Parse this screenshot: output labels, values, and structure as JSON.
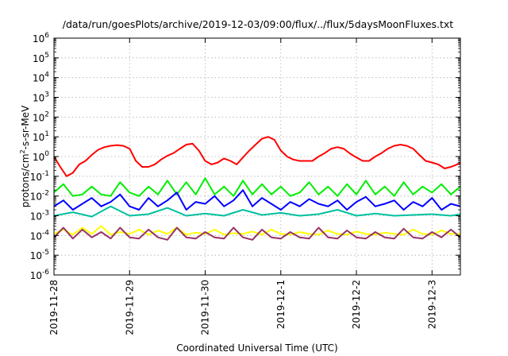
{
  "chart_data": {
    "type": "line",
    "title": "/data/run/goesPlots/archive/2019-12-03/09:00/flux/../flux/5daysMoonFluxes.txt",
    "xlabel": "Coordinated Universal Time (UTC)",
    "ylabel": {
      "prefix": "protons/cm",
      "sup": "2",
      "suffix": "-s-sr-MeV"
    },
    "yscale": "log",
    "ylim": [
      -6,
      6
    ],
    "y_ticks": [
      {
        "exp": -6,
        "base": "10",
        "sup": "-6"
      },
      {
        "exp": -5,
        "base": "10",
        "sup": "-5"
      },
      {
        "exp": -4,
        "base": "10",
        "sup": "-4"
      },
      {
        "exp": -3,
        "base": "10",
        "sup": "-3"
      },
      {
        "exp": -2,
        "base": "10",
        "sup": "-2"
      },
      {
        "exp": -1,
        "base": "10",
        "sup": "-1"
      },
      {
        "exp": 0,
        "base": "10",
        "sup": "0"
      },
      {
        "exp": 1,
        "base": "10",
        "sup": "1"
      },
      {
        "exp": 2,
        "base": "10",
        "sup": "2"
      },
      {
        "exp": 3,
        "base": "10",
        "sup": "3"
      },
      {
        "exp": 4,
        "base": "10",
        "sup": "4"
      },
      {
        "exp": 5,
        "base": "10",
        "sup": "5"
      },
      {
        "exp": 6,
        "base": "10",
        "sup": "6"
      }
    ],
    "xlim": [
      "2019-11-28T00:00",
      "2019-12-03T09:00"
    ],
    "x_ticks": [
      "2019-11-28",
      "2019-11-29",
      "2019-11-30",
      "2019-12-1",
      "2019-12-2",
      "2019-12-3"
    ],
    "x_tick_dates": [
      "2019-11-28",
      "2019-11-29",
      "2019-11-30",
      "2019-12-01",
      "2019-12-02",
      "2019-12-03"
    ],
    "grid": true,
    "series": [
      {
        "color": "#ff0000",
        "x": [
          "2019-11-28T00:00",
          "2019-11-28T02:00",
          "2019-11-28T04:00",
          "2019-11-28T06:00",
          "2019-11-28T08:00",
          "2019-11-28T10:00",
          "2019-11-28T12:00",
          "2019-11-28T14:00",
          "2019-11-28T16:00",
          "2019-11-28T18:00",
          "2019-11-28T20:00",
          "2019-11-28T22:00",
          "2019-11-29T00:00",
          "2019-11-29T02:00",
          "2019-11-29T04:00",
          "2019-11-29T06:00",
          "2019-11-29T08:00",
          "2019-11-29T10:00",
          "2019-11-29T12:00",
          "2019-11-29T14:00",
          "2019-11-29T16:00",
          "2019-11-29T18:00",
          "2019-11-29T20:00",
          "2019-11-29T22:00",
          "2019-11-30T00:00",
          "2019-11-30T02:00",
          "2019-11-30T04:00",
          "2019-11-30T06:00",
          "2019-11-30T08:00",
          "2019-11-30T10:00",
          "2019-11-30T12:00",
          "2019-11-30T14:00",
          "2019-11-30T16:00",
          "2019-11-30T18:00",
          "2019-11-30T20:00",
          "2019-11-30T22:00",
          "2019-12-01T00:00",
          "2019-12-01T02:00",
          "2019-12-01T04:00",
          "2019-12-01T06:00",
          "2019-12-01T08:00",
          "2019-12-01T10:00",
          "2019-12-01T12:00",
          "2019-12-01T14:00",
          "2019-12-01T16:00",
          "2019-12-01T18:00",
          "2019-12-01T20:00",
          "2019-12-01T22:00",
          "2019-12-02T00:00",
          "2019-12-02T02:00",
          "2019-12-02T04:00",
          "2019-12-02T06:00",
          "2019-12-02T08:00",
          "2019-12-02T10:00",
          "2019-12-02T12:00",
          "2019-12-02T14:00",
          "2019-12-02T16:00",
          "2019-12-02T18:00",
          "2019-12-02T20:00",
          "2019-12-02T22:00",
          "2019-12-03T00:00",
          "2019-12-03T02:00",
          "2019-12-03T04:00",
          "2019-12-03T06:00",
          "2019-12-03T08:00",
          "2019-12-03T09:00"
        ],
        "y": [
          1.0,
          0.3,
          0.1,
          0.15,
          0.4,
          0.6,
          1.2,
          2.2,
          3.0,
          3.5,
          3.8,
          3.5,
          2.5,
          0.6,
          0.3,
          0.3,
          0.4,
          0.7,
          1.1,
          1.5,
          2.5,
          4.0,
          4.5,
          2.0,
          0.6,
          0.4,
          0.5,
          0.8,
          0.6,
          0.4,
          0.9,
          2.0,
          4.0,
          8.0,
          10.0,
          7.0,
          2.0,
          1.0,
          0.7,
          0.6,
          0.6,
          0.6,
          1.0,
          1.5,
          2.5,
          3.0,
          2.5,
          1.4,
          0.9,
          0.6,
          0.6,
          1.0,
          1.5,
          2.5,
          3.5,
          4.0,
          3.5,
          2.5,
          1.2,
          0.6,
          0.5,
          0.4,
          0.25,
          0.3,
          0.4,
          0.5
        ]
      },
      {
        "color": "#00ee00",
        "x": [
          "2019-11-28T00:00",
          "2019-11-28T03:00",
          "2019-11-28T06:00",
          "2019-11-28T09:00",
          "2019-11-28T12:00",
          "2019-11-28T15:00",
          "2019-11-28T18:00",
          "2019-11-28T21:00",
          "2019-11-29T00:00",
          "2019-11-29T03:00",
          "2019-11-29T06:00",
          "2019-11-29T09:00",
          "2019-11-29T12:00",
          "2019-11-29T15:00",
          "2019-11-29T18:00",
          "2019-11-29T21:00",
          "2019-11-30T00:00",
          "2019-11-30T03:00",
          "2019-11-30T06:00",
          "2019-11-30T09:00",
          "2019-11-30T12:00",
          "2019-11-30T15:00",
          "2019-11-30T18:00",
          "2019-11-30T21:00",
          "2019-12-01T00:00",
          "2019-12-01T03:00",
          "2019-12-01T06:00",
          "2019-12-01T09:00",
          "2019-12-01T12:00",
          "2019-12-01T15:00",
          "2019-12-01T18:00",
          "2019-12-01T21:00",
          "2019-12-02T00:00",
          "2019-12-02T03:00",
          "2019-12-02T06:00",
          "2019-12-02T09:00",
          "2019-12-02T12:00",
          "2019-12-02T15:00",
          "2019-12-02T18:00",
          "2019-12-02T21:00",
          "2019-12-03T00:00",
          "2019-12-03T03:00",
          "2019-12-03T06:00",
          "2019-12-03T09:00"
        ],
        "y": [
          0.015,
          0.04,
          0.01,
          0.012,
          0.03,
          0.012,
          0.01,
          0.05,
          0.015,
          0.01,
          0.03,
          0.012,
          0.06,
          0.012,
          0.05,
          0.012,
          0.08,
          0.012,
          0.03,
          0.01,
          0.06,
          0.012,
          0.04,
          0.012,
          0.03,
          0.01,
          0.015,
          0.05,
          0.012,
          0.03,
          0.01,
          0.04,
          0.012,
          0.06,
          0.012,
          0.03,
          0.01,
          0.05,
          0.012,
          0.03,
          0.015,
          0.04,
          0.012,
          0.03
        ]
      },
      {
        "color": "#0000ff",
        "x": [
          "2019-11-28T00:00",
          "2019-11-28T03:00",
          "2019-11-28T06:00",
          "2019-11-28T09:00",
          "2019-11-28T12:00",
          "2019-11-28T15:00",
          "2019-11-28T18:00",
          "2019-11-28T21:00",
          "2019-11-29T00:00",
          "2019-11-29T03:00",
          "2019-11-29T06:00",
          "2019-11-29T09:00",
          "2019-11-29T12:00",
          "2019-11-29T15:00",
          "2019-11-29T18:00",
          "2019-11-29T21:00",
          "2019-11-30T00:00",
          "2019-11-30T03:00",
          "2019-11-30T06:00",
          "2019-11-30T09:00",
          "2019-11-30T12:00",
          "2019-11-30T15:00",
          "2019-11-30T18:00",
          "2019-11-30T21:00",
          "2019-12-01T00:00",
          "2019-12-01T03:00",
          "2019-12-01T06:00",
          "2019-12-01T09:00",
          "2019-12-01T12:00",
          "2019-12-01T15:00",
          "2019-12-01T18:00",
          "2019-12-01T21:00",
          "2019-12-02T00:00",
          "2019-12-02T03:00",
          "2019-12-02T06:00",
          "2019-12-02T09:00",
          "2019-12-02T12:00",
          "2019-12-02T15:00",
          "2019-12-02T18:00",
          "2019-12-02T21:00",
          "2019-12-03T00:00",
          "2019-12-03T03:00",
          "2019-12-03T06:00",
          "2019-12-03T09:00"
        ],
        "y": [
          0.003,
          0.006,
          0.002,
          0.004,
          0.008,
          0.003,
          0.005,
          0.012,
          0.003,
          0.002,
          0.008,
          0.003,
          0.006,
          0.015,
          0.002,
          0.005,
          0.004,
          0.01,
          0.003,
          0.006,
          0.02,
          0.003,
          0.008,
          0.004,
          0.002,
          0.005,
          0.003,
          0.007,
          0.004,
          0.003,
          0.006,
          0.002,
          0.005,
          0.009,
          0.003,
          0.004,
          0.006,
          0.002,
          0.005,
          0.003,
          0.008,
          0.002,
          0.004,
          0.003
        ]
      },
      {
        "color": "#00c0a0",
        "x": [
          "2019-11-28T00:00",
          "2019-11-28T06:00",
          "2019-11-28T12:00",
          "2019-11-28T18:00",
          "2019-11-29T00:00",
          "2019-11-29T06:00",
          "2019-11-29T12:00",
          "2019-11-29T18:00",
          "2019-11-30T00:00",
          "2019-11-30T06:00",
          "2019-11-30T12:00",
          "2019-11-30T18:00",
          "2019-12-01T00:00",
          "2019-12-01T06:00",
          "2019-12-01T12:00",
          "2019-12-01T18:00",
          "2019-12-02T00:00",
          "2019-12-02T06:00",
          "2019-12-02T12:00",
          "2019-12-02T18:00",
          "2019-12-03T00:00",
          "2019-12-03T06:00",
          "2019-12-03T09:00"
        ],
        "y": [
          0.001,
          0.0015,
          0.0009,
          0.003,
          0.001,
          0.0012,
          0.0025,
          0.001,
          0.0013,
          0.001,
          0.002,
          0.0011,
          0.0014,
          0.001,
          0.0012,
          0.002,
          0.001,
          0.0013,
          0.001,
          0.0011,
          0.0012,
          0.001,
          0.0012
        ]
      },
      {
        "color": "#ffff00",
        "x": [
          "2019-11-28T00:00",
          "2019-11-28T03:00",
          "2019-11-28T06:00",
          "2019-11-28T09:00",
          "2019-11-28T12:00",
          "2019-11-28T15:00",
          "2019-11-28T18:00",
          "2019-11-28T21:00",
          "2019-11-29T00:00",
          "2019-11-29T03:00",
          "2019-11-29T06:00",
          "2019-11-29T09:00",
          "2019-11-29T12:00",
          "2019-11-29T15:00",
          "2019-11-29T18:00",
          "2019-11-29T21:00",
          "2019-11-30T00:00",
          "2019-11-30T03:00",
          "2019-11-30T06:00",
          "2019-11-30T09:00",
          "2019-11-30T12:00",
          "2019-11-30T15:00",
          "2019-11-30T18:00",
          "2019-11-30T21:00",
          "2019-12-01T00:00",
          "2019-12-01T03:00",
          "2019-12-01T06:00",
          "2019-12-01T09:00",
          "2019-12-01T12:00",
          "2019-12-01T15:00",
          "2019-12-01T18:00",
          "2019-12-01T21:00",
          "2019-12-02T00:00",
          "2019-12-02T03:00",
          "2019-12-02T06:00",
          "2019-12-02T09:00",
          "2019-12-02T12:00",
          "2019-12-02T15:00",
          "2019-12-02T18:00",
          "2019-12-02T21:00",
          "2019-12-03T00:00",
          "2019-12-03T03:00",
          "2019-12-03T06:00",
          "2019-12-03T09:00"
        ],
        "y": [
          0.00012,
          0.0002,
          0.00011,
          0.00025,
          0.00012,
          0.0003,
          0.00011,
          0.00015,
          0.00012,
          0.0002,
          0.00011,
          0.00018,
          0.00012,
          0.00025,
          0.00011,
          0.00014,
          0.00012,
          0.0002,
          0.00011,
          0.00013,
          0.00012,
          0.00016,
          0.00011,
          0.0002,
          0.00012,
          0.00011,
          0.00015,
          0.00012,
          0.00011,
          0.00018,
          0.00012,
          0.00011,
          0.00016,
          0.00012,
          0.00011,
          0.00014,
          0.00012,
          0.00011,
          0.0002,
          0.00012,
          0.00011,
          0.00018,
          0.00012,
          0.00012
        ]
      },
      {
        "color": "#993366",
        "x": [
          "2019-11-28T00:00",
          "2019-11-28T03:00",
          "2019-11-28T06:00",
          "2019-11-28T09:00",
          "2019-11-28T12:00",
          "2019-11-28T15:00",
          "2019-11-28T18:00",
          "2019-11-28T21:00",
          "2019-11-29T00:00",
          "2019-11-29T03:00",
          "2019-11-29T06:00",
          "2019-11-29T09:00",
          "2019-11-29T12:00",
          "2019-11-29T15:00",
          "2019-11-29T18:00",
          "2019-11-29T21:00",
          "2019-11-30T00:00",
          "2019-11-30T03:00",
          "2019-11-30T06:00",
          "2019-11-30T09:00",
          "2019-11-30T12:00",
          "2019-11-30T15:00",
          "2019-11-30T18:00",
          "2019-11-30T21:00",
          "2019-12-01T00:00",
          "2019-12-01T03:00",
          "2019-12-01T06:00",
          "2019-12-01T09:00",
          "2019-12-01T12:00",
          "2019-12-01T15:00",
          "2019-12-01T18:00",
          "2019-12-01T21:00",
          "2019-12-02T00:00",
          "2019-12-02T03:00",
          "2019-12-02T06:00",
          "2019-12-02T09:00",
          "2019-12-02T12:00",
          "2019-12-02T15:00",
          "2019-12-02T18:00",
          "2019-12-02T21:00",
          "2019-12-03T00:00",
          "2019-12-03T03:00",
          "2019-12-03T06:00",
          "2019-12-03T09:00"
        ],
        "y": [
          8e-05,
          0.00025,
          7e-05,
          0.0002,
          8e-05,
          0.00015,
          7e-05,
          0.00025,
          8e-05,
          7e-05,
          0.0002,
          8e-05,
          6e-05,
          0.00025,
          8e-05,
          7e-05,
          0.00015,
          8e-05,
          7e-05,
          0.00025,
          8e-05,
          6e-05,
          0.0002,
          8e-05,
          7e-05,
          0.00015,
          8e-05,
          7e-05,
          0.00025,
          8e-05,
          7e-05,
          0.00018,
          8e-05,
          7e-05,
          0.00015,
          8e-05,
          7e-05,
          0.00022,
          8e-05,
          7e-05,
          0.00015,
          8e-05,
          0.0002,
          8e-05
        ]
      }
    ]
  }
}
